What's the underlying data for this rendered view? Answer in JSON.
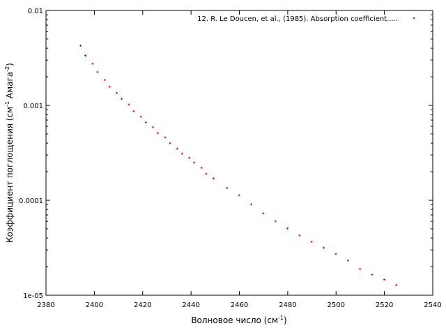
{
  "chart_data": {
    "type": "scatter",
    "title": "",
    "xlabel": "Волновое число (см",
    "xlabel_sup": "-1",
    "xlabel_end": ")",
    "ylabel_pre": "Коэффициент поглощения (см",
    "ylabel_sup1": "-1",
    "ylabel_mid": " Амага",
    "ylabel_sup2": "-2",
    "ylabel_end": ")",
    "xlim": [
      2380,
      2540
    ],
    "ylim": [
      1e-05,
      0.01
    ],
    "yscale": "log",
    "grid": false,
    "legend_position": "top-right",
    "x_ticks": [
      2380,
      2400,
      2420,
      2440,
      2460,
      2480,
      2500,
      2520,
      2540
    ],
    "y_ticks": [
      1e-05,
      0.0001,
      0.001,
      0.01
    ],
    "y_tick_labels": [
      "1e-05",
      "0.0001",
      "0.001",
      "0.01"
    ],
    "series": [
      {
        "name": "12. R. Le Doucen, et al., (1985). Absorption coefficient.....",
        "color": "#cc0000",
        "marker": "plus",
        "x": [
          2394.3,
          2396.3,
          2399.3,
          2401.3,
          2404.3,
          2406.3,
          2409.3,
          2411.3,
          2414.3,
          2416.3,
          2419.3,
          2421.3,
          2424.3,
          2426.3,
          2429.3,
          2431.3,
          2434.3,
          2436.3,
          2439.3,
          2441.3,
          2444.3,
          2446.3,
          2449.3,
          2454.9,
          2459.9,
          2464.9,
          2469.9,
          2474.9,
          2479.9,
          2484.9,
          2489.9,
          2494.9,
          2499.9,
          2504.9,
          2509.9,
          2514.9,
          2519.9,
          2524.9
        ],
        "y": [
          0.00425,
          0.00335,
          0.00275,
          0.00225,
          0.00185,
          0.00157,
          0.00135,
          0.00117,
          0.00102,
          0.00087,
          0.00076,
          0.00066,
          0.00059,
          0.00051,
          0.00046,
          0.0004,
          0.00035,
          0.00031,
          0.00028,
          0.00025,
          0.00022,
          0.00019,
          0.00017,
          0.000135,
          0.000113,
          9.05e-05,
          7.28e-05,
          6.02e-05,
          5.06e-05,
          4.27e-05,
          3.66e-05,
          3.16e-05,
          2.72e-05,
          2.32e-05,
          1.89e-05,
          1.65e-05,
          1.46e-05,
          1.28e-05
        ]
      }
    ]
  }
}
